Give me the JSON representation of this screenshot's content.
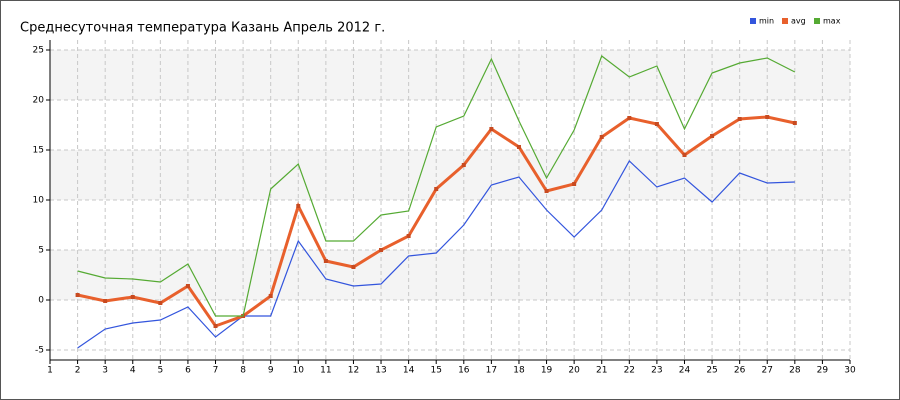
{
  "chart_data": {
    "type": "line",
    "title": "Среднесуточная температура Казань  Апрель 2012 г.",
    "x": [
      2,
      3,
      4,
      5,
      6,
      7,
      8,
      9,
      10,
      11,
      12,
      13,
      14,
      15,
      16,
      17,
      18,
      19,
      20,
      21,
      22,
      23,
      24,
      25,
      26,
      27,
      28
    ],
    "series": [
      {
        "name": "min",
        "color": "#3355dd",
        "values": [
          -4.8,
          -2.9,
          -2.3,
          -2.0,
          -0.7,
          -3.7,
          -1.6,
          -1.6,
          5.9,
          2.1,
          1.4,
          1.6,
          4.4,
          4.7,
          7.5,
          11.5,
          12.3,
          9.0,
          6.3,
          9.0,
          13.9,
          11.3,
          12.2,
          9.8,
          12.7,
          11.7,
          11.8
        ]
      },
      {
        "name": "avg",
        "color": "#e8602c",
        "values": [
          0.5,
          -0.1,
          0.3,
          -0.3,
          1.4,
          -2.6,
          -1.6,
          0.4,
          9.4,
          3.9,
          3.3,
          5.0,
          6.4,
          11.1,
          13.5,
          17.1,
          15.3,
          10.9,
          11.6,
          16.3,
          18.2,
          17.6,
          14.5,
          16.4,
          18.1,
          18.3,
          17.7
        ]
      },
      {
        "name": "max",
        "color": "#55aa33",
        "values": [
          2.9,
          2.2,
          2.1,
          1.8,
          3.6,
          -1.6,
          -1.6,
          11.1,
          13.6,
          5.9,
          5.9,
          8.5,
          8.9,
          17.3,
          18.4,
          24.1,
          17.9,
          12.2,
          17.0,
          24.4,
          22.3,
          23.4,
          17.1,
          22.7,
          23.7,
          24.2,
          22.8
        ]
      }
    ],
    "xlim": [
      1,
      30
    ],
    "ylim": [
      -6,
      26
    ],
    "xticks": [
      1,
      2,
      3,
      4,
      5,
      6,
      7,
      8,
      9,
      10,
      11,
      12,
      13,
      14,
      15,
      16,
      17,
      18,
      19,
      20,
      21,
      22,
      23,
      24,
      25,
      26,
      27,
      28,
      29,
      30
    ],
    "yticks": [
      -5,
      0,
      5,
      10,
      15,
      20,
      25
    ],
    "grid": true,
    "legend": "top-right"
  }
}
